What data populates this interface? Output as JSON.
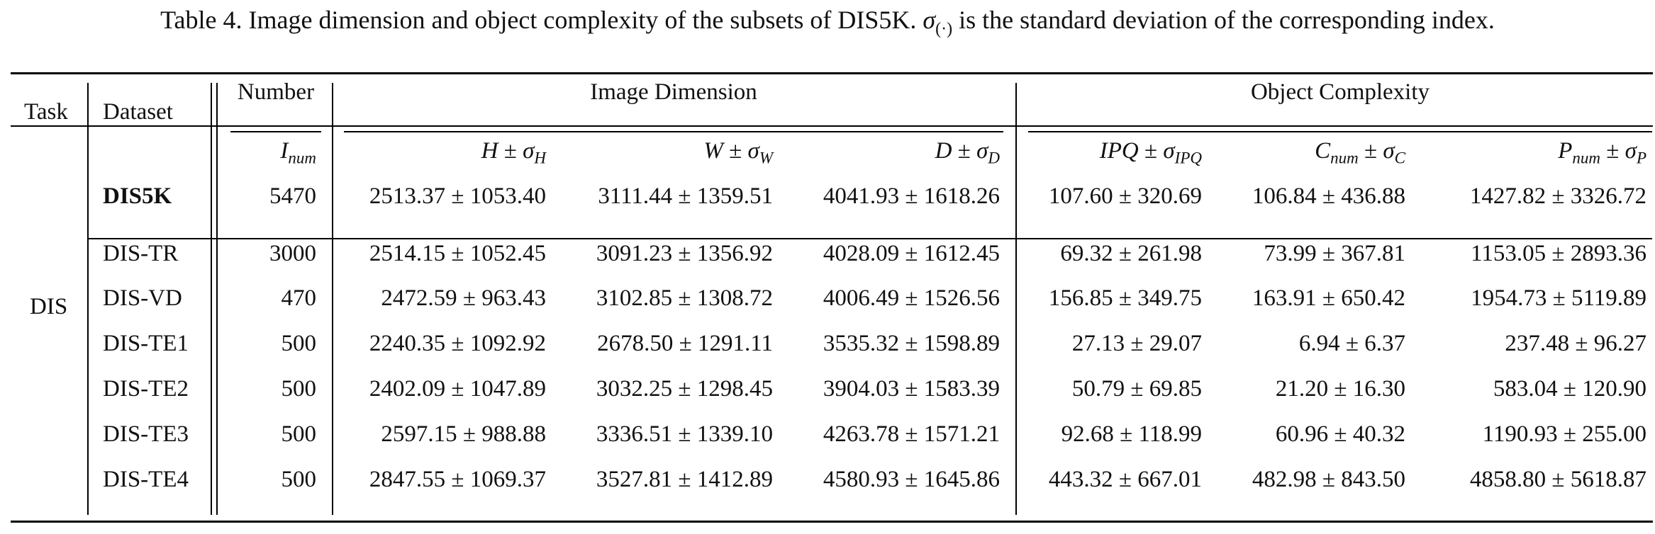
{
  "caption": {
    "prefix": "Table 4. Image dimension and object complexity of the subsets of DIS5K.",
    "symbol": "σ",
    "symbol_sub": "(·)",
    "suffix": "is the standard deviation of the corresponding index."
  },
  "header": {
    "task": "Task",
    "dataset": "Dataset",
    "number": "Number",
    "image_dimension": "Image Dimension",
    "object_complexity": "Object Complexity",
    "inum": {
      "base": "I",
      "sub": "num"
    },
    "h": {
      "base": "H",
      "pm": "±",
      "sig": "σ",
      "sub": "H"
    },
    "w": {
      "base": "W",
      "pm": "±",
      "sig": "σ",
      "sub": "W"
    },
    "d": {
      "base": "D",
      "pm": "±",
      "sig": "σ",
      "sub": "D"
    },
    "ipq": {
      "base": "IPQ",
      "pm": "±",
      "sig": "σ",
      "sub": "IPQ"
    },
    "cnum": {
      "base": "C",
      "base_sub": "num",
      "pm": "±",
      "sig": "σ",
      "sub": "C"
    },
    "pnum": {
      "base": "P",
      "base_sub": "num",
      "pm": "±",
      "sig": "σ",
      "sub": "P"
    }
  },
  "task_label": "DIS",
  "rows": [
    {
      "dataset": "DIS5K",
      "number": "5470",
      "h": "2513.37 ± 1053.40",
      "w": "3111.44 ± 1359.51",
      "d": "4041.93 ± 1618.26",
      "ipq": "107.60 ± 320.69",
      "cnum": "106.84 ± 436.88",
      "pnum": "1427.82 ± 3326.72"
    },
    {
      "dataset": "DIS-TR",
      "number": "3000",
      "h": "2514.15 ± 1052.45",
      "w": "3091.23 ± 1356.92",
      "d": "4028.09 ± 1612.45",
      "ipq": "69.32 ± 261.98",
      "cnum": "73.99 ± 367.81",
      "pnum": "1153.05 ± 2893.36"
    },
    {
      "dataset": "DIS-VD",
      "number": "470",
      "h": "2472.59 ± 963.43",
      "w": "3102.85 ± 1308.72",
      "d": "4006.49 ± 1526.56",
      "ipq": "156.85 ± 349.75",
      "cnum": "163.91 ± 650.42",
      "pnum": "1954.73 ± 5119.89"
    },
    {
      "dataset": "DIS-TE1",
      "number": "500",
      "h": "2240.35 ± 1092.92",
      "w": "2678.50 ± 1291.11",
      "d": "3535.32 ± 1598.89",
      "ipq": "27.13 ± 29.07",
      "cnum": "6.94 ± 6.37",
      "pnum": "237.48 ± 96.27"
    },
    {
      "dataset": "DIS-TE2",
      "number": "500",
      "h": "2402.09 ± 1047.89",
      "w": "3032.25 ± 1298.45",
      "d": "3904.03 ± 1583.39",
      "ipq": "50.79 ± 69.85",
      "cnum": "21.20 ± 16.30",
      "pnum": "583.04 ± 120.90"
    },
    {
      "dataset": "DIS-TE3",
      "number": "500",
      "h": "2597.15 ± 988.88",
      "w": "3336.51 ± 1339.10",
      "d": "4263.78 ± 1571.21",
      "ipq": "92.68 ± 118.99",
      "cnum": "60.96 ± 40.32",
      "pnum": "1190.93 ± 255.00"
    },
    {
      "dataset": "DIS-TE4",
      "number": "500",
      "h": "2847.55 ± 1069.37",
      "w": "3527.81 ± 1412.89",
      "d": "4580.93 ± 1645.86",
      "ipq": "443.32 ± 667.01",
      "cnum": "482.98 ± 843.50",
      "pnum": "4858.80 ± 5618.87"
    }
  ]
}
